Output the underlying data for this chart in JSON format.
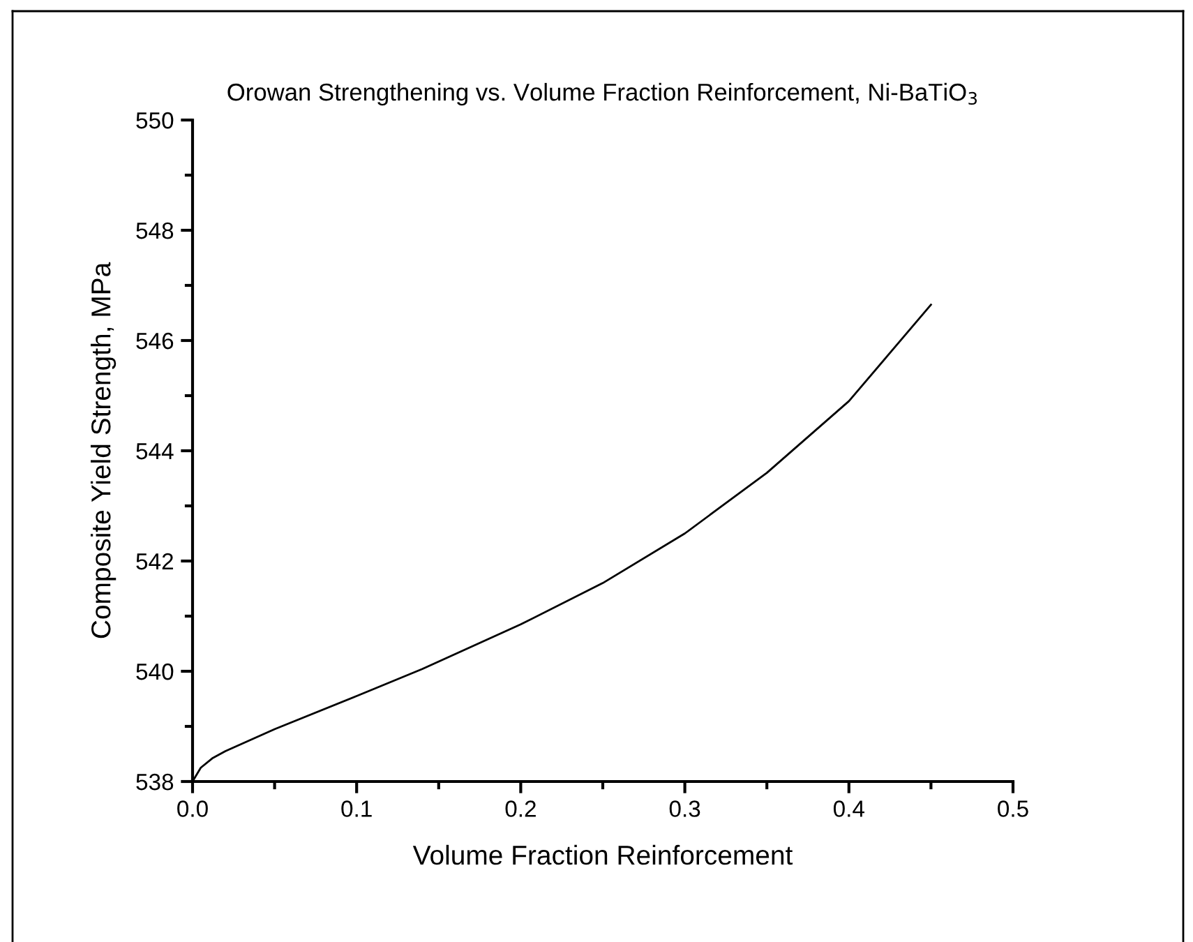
{
  "chart_data": {
    "type": "line",
    "title": "Orowan Strengthening vs. Volume Fraction Reinforcement, Ni-BaTiO$_{3}$",
    "xlabel": "Volume Fraction Reinforcement",
    "ylabel": "Composite Yield Strength, MPa",
    "series": [
      {
        "color": "#000000",
        "x": [
          0,
          0.005,
          0.012,
          0.02,
          0.05,
          0.1,
          0.14,
          0.2,
          0.25,
          0.3,
          0.35,
          0.4,
          0.45
        ],
        "values": [
          538.0,
          538.25,
          538.42,
          538.55,
          538.95,
          539.55,
          540.04,
          540.85,
          541.6,
          542.5,
          543.6,
          544.9,
          546.65
        ]
      }
    ],
    "xlim": [
      0,
      0.5
    ],
    "ylim": [
      538,
      550
    ],
    "xticks": [
      {
        "value": 0,
        "label": "0.0"
      },
      0.1,
      0.2,
      0.3,
      0.4,
      0.5
    ],
    "yticks": [
      538,
      540,
      542,
      544,
      546,
      548,
      550
    ],
    "grid": false,
    "legend": false,
    "marker": "none",
    "line_style": "solid"
  }
}
